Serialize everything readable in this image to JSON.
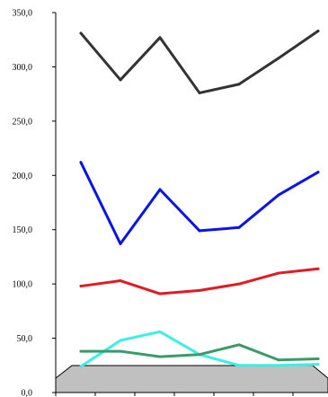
{
  "chart_data": {
    "type": "line",
    "title": "",
    "xlabel": "",
    "ylabel": "",
    "ylim": [
      0,
      350
    ],
    "yticks": [
      "0,0",
      "50,0",
      "100,0",
      "150,0",
      "200,0",
      "250,0",
      "300,0",
      "350,0"
    ],
    "ytick_values": [
      0,
      50,
      100,
      150,
      200,
      250,
      300,
      350
    ],
    "x": [
      1,
      2,
      3,
      4,
      5,
      6,
      7
    ],
    "grid": false,
    "floor": "3d-gray",
    "series": [
      {
        "values": [
          331,
          288,
          327,
          276,
          284,
          308,
          333
        ],
        "color": "#333333"
      },
      {
        "values": [
          212,
          137,
          187,
          149,
          152,
          182,
          203
        ],
        "color": "#0a14e6"
      },
      {
        "values": [
          98,
          103,
          91,
          94,
          100,
          110,
          114
        ],
        "color": "#e01b24"
      },
      {
        "values": [
          24,
          48,
          56,
          35,
          25,
          25,
          26
        ],
        "color": "#3deee6"
      },
      {
        "values": [
          38,
          38,
          33,
          35,
          44,
          30,
          31
        ],
        "color": "#3a9a6a"
      }
    ]
  }
}
